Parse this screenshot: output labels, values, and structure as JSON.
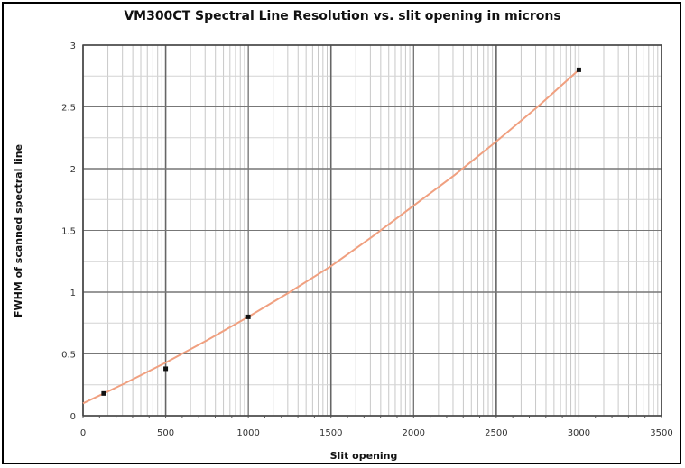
{
  "chart_data": {
    "type": "scatter",
    "title": "VM300CT Spectral Line Resolution vs. slit opening in microns",
    "xlabel": "Slit opening",
    "ylabel": "FWHM of scanned spectral line",
    "xlim": [
      0,
      3500
    ],
    "ylim": [
      0,
      3
    ],
    "x_ticks": [
      0,
      500,
      1000,
      1500,
      2000,
      2500,
      3000,
      3500
    ],
    "y_ticks": [
      0,
      0.5,
      1,
      1.5,
      2,
      2.5,
      3
    ],
    "x_tick_labels": [
      "0",
      "500",
      "1000",
      "1500",
      "2000",
      "2500",
      "3000",
      "3500"
    ],
    "y_tick_labels": [
      "0",
      "0.5",
      "1",
      "1.5",
      "2",
      "2.5",
      "3"
    ],
    "grid": true,
    "series": [
      {
        "type": "scatter",
        "x": [
          125,
          500,
          1000,
          3000
        ],
        "y": [
          0.18,
          0.38,
          0.8,
          2.8
        ],
        "color": "#111111"
      },
      {
        "type": "line",
        "x": [
          0,
          250,
          500,
          750,
          1000,
          1250,
          1500,
          1750,
          2000,
          2250,
          2500,
          2750,
          3000
        ],
        "y": [
          0.1,
          0.26,
          0.43,
          0.61,
          0.8,
          1.0,
          1.21,
          1.45,
          1.7,
          1.95,
          2.22,
          2.5,
          2.8
        ],
        "color": "#f0a080"
      }
    ]
  }
}
